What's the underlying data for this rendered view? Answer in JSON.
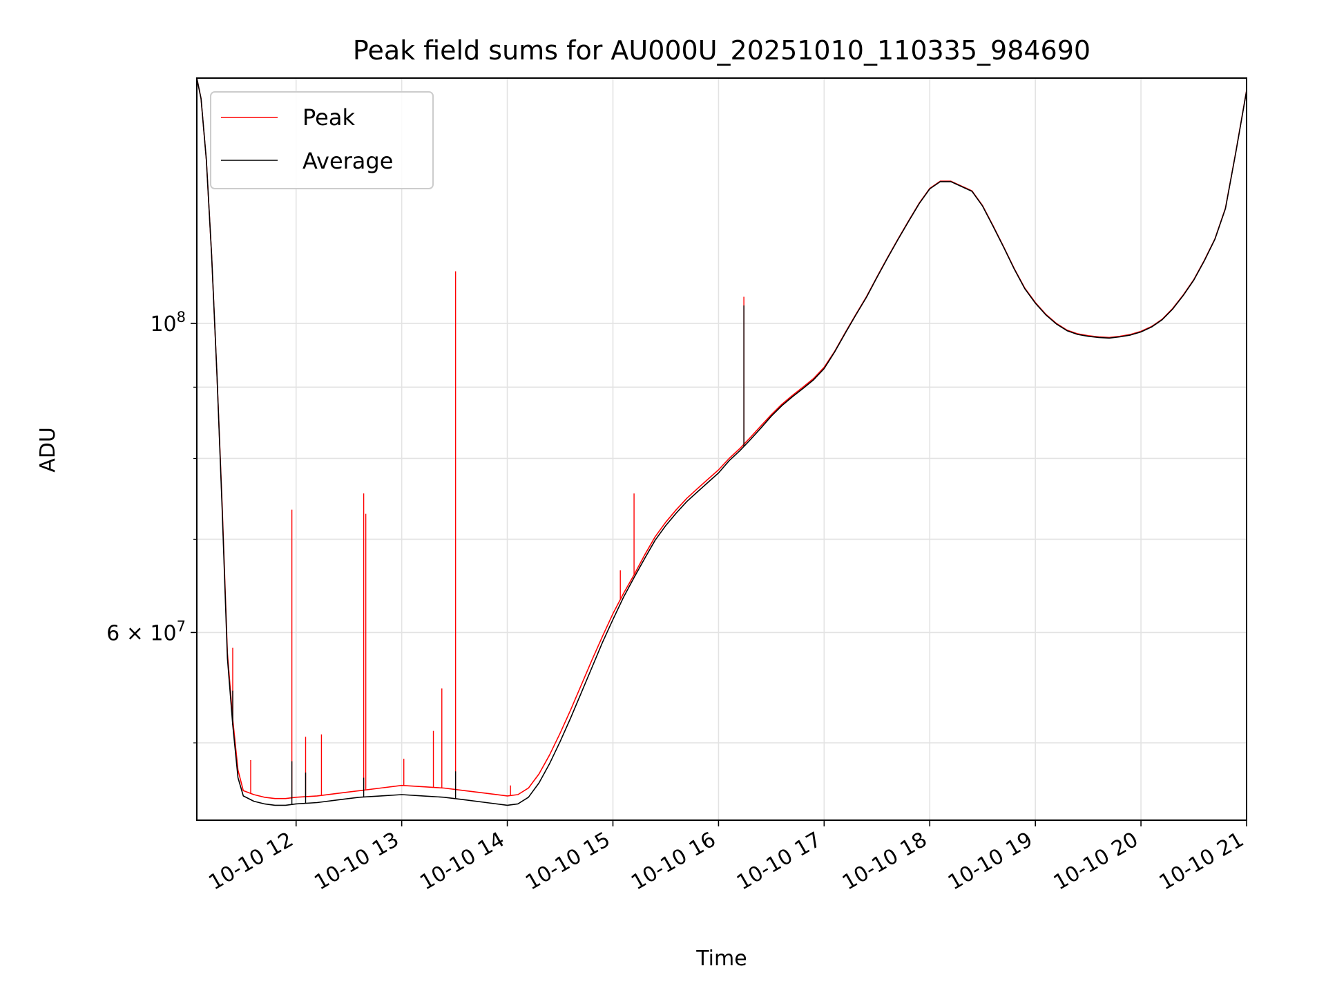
{
  "chart_data": {
    "type": "line",
    "title": "Peak field sums for AU000U_20251010_110335_984690",
    "xlabel": "Time",
    "ylabel": "ADU",
    "yscale": "log",
    "ylim": [
      44000000,
      150000000
    ],
    "xlim_hours": [
      11.06,
      21.0
    ],
    "grid": true,
    "legend_position": "top-left",
    "x_ticks": [
      {
        "value": 12,
        "label": "10-10 12"
      },
      {
        "value": 13,
        "label": "10-10 13"
      },
      {
        "value": 14,
        "label": "10-10 14"
      },
      {
        "value": 15,
        "label": "10-10 15"
      },
      {
        "value": 16,
        "label": "10-10 16"
      },
      {
        "value": 17,
        "label": "10-10 17"
      },
      {
        "value": 18,
        "label": "10-10 18"
      },
      {
        "value": 19,
        "label": "10-10 19"
      },
      {
        "value": 20,
        "label": "10-10 20"
      },
      {
        "value": 21,
        "label": "10-10 21"
      }
    ],
    "y_major_ticks": [
      {
        "value": 100000000,
        "label": "10",
        "sup": "8"
      },
      {
        "value": 60000000,
        "label": "6 × 10",
        "sup": "7"
      }
    ],
    "y_minor_ticks": [
      50000000,
      70000000,
      80000000,
      90000000
    ],
    "series": [
      {
        "name": "Peak",
        "color": "#ff0000",
        "x_hours": [
          11.06,
          11.1,
          11.15,
          11.2,
          11.25,
          11.3,
          11.35,
          11.4,
          11.45,
          11.5,
          11.6,
          11.7,
          11.8,
          11.9,
          12.0,
          12.2,
          12.4,
          12.6,
          12.8,
          13.0,
          13.2,
          13.4,
          13.6,
          13.8,
          14.0,
          14.1,
          14.2,
          14.3,
          14.4,
          14.5,
          14.6,
          14.7,
          14.8,
          14.9,
          15.0,
          15.1,
          15.2,
          15.3,
          15.4,
          15.5,
          15.6,
          15.7,
          15.8,
          15.9,
          16.0,
          16.1,
          16.2,
          16.3,
          16.4,
          16.5,
          16.6,
          16.7,
          16.8,
          16.9,
          17.0,
          17.1,
          17.2,
          17.3,
          17.4,
          17.5,
          17.6,
          17.7,
          17.8,
          17.9,
          18.0,
          18.1,
          18.2,
          18.3,
          18.4,
          18.5,
          18.6,
          18.7,
          18.8,
          18.9,
          19.0,
          19.1,
          19.2,
          19.3,
          19.4,
          19.5,
          19.6,
          19.7,
          19.8,
          19.9,
          20.0,
          20.1,
          20.2,
          20.3,
          20.4,
          20.5,
          20.6,
          20.7,
          20.8,
          20.9,
          21.0
        ],
        "values": [
          150000000,
          145000000,
          131000000,
          112000000,
          92000000,
          74000000,
          58000000,
          52000000,
          47800000,
          46200000,
          45900000,
          45700000,
          45600000,
          45600000,
          45700000,
          45800000,
          46000000,
          46200000,
          46400000,
          46600000,
          46500000,
          46400000,
          46200000,
          46000000,
          45800000,
          45900000,
          46400000,
          47500000,
          49000000,
          50800000,
          52800000,
          55000000,
          57300000,
          59600000,
          61900000,
          64000000,
          66000000,
          68200000,
          70300000,
          72000000,
          73500000,
          74900000,
          76100000,
          77300000,
          78500000,
          80000000,
          81300000,
          82800000,
          84400000,
          86000000,
          87500000,
          88800000,
          90000000,
          91300000,
          93000000,
          95500000,
          98500000,
          101500000,
          104500000,
          108000000,
          111500000,
          115000000,
          118500000,
          122000000,
          125000000,
          126500000,
          126500000,
          125500000,
          124500000,
          121500000,
          117500000,
          113500000,
          109500000,
          106000000,
          103500000,
          101500000,
          100000000,
          98900000,
          98300000,
          98000000,
          97800000,
          97700000,
          97900000,
          98200000,
          98700000,
          99500000,
          100700000,
          102500000,
          104800000,
          107500000,
          111000000,
          115000000,
          121000000,
          133000000,
          147000000
        ],
        "spikes": [
          {
            "x": 11.4,
            "value": 58500000
          },
          {
            "x": 11.57,
            "value": 48600000
          },
          {
            "x": 11.96,
            "value": 73500000
          },
          {
            "x": 12.09,
            "value": 50500000
          },
          {
            "x": 12.24,
            "value": 50700000
          },
          {
            "x": 12.64,
            "value": 75500000
          },
          {
            "x": 12.66,
            "value": 73000000
          },
          {
            "x": 13.02,
            "value": 48700000
          },
          {
            "x": 13.3,
            "value": 51000000
          },
          {
            "x": 13.38,
            "value": 54700000
          },
          {
            "x": 13.51,
            "value": 109000000
          },
          {
            "x": 14.03,
            "value": 46600000
          },
          {
            "x": 15.07,
            "value": 66500000
          },
          {
            "x": 15.2,
            "value": 75500000
          },
          {
            "x": 16.24,
            "value": 104500000
          }
        ]
      },
      {
        "name": "Average",
        "color": "#000000",
        "x_hours": [
          11.06,
          11.1,
          11.15,
          11.2,
          11.25,
          11.3,
          11.35,
          11.4,
          11.45,
          11.5,
          11.6,
          11.7,
          11.8,
          11.9,
          12.0,
          12.2,
          12.4,
          12.6,
          12.8,
          13.0,
          13.2,
          13.4,
          13.6,
          13.8,
          14.0,
          14.1,
          14.2,
          14.3,
          14.4,
          14.5,
          14.6,
          14.7,
          14.8,
          14.9,
          15.0,
          15.1,
          15.2,
          15.3,
          15.4,
          15.5,
          15.6,
          15.7,
          15.8,
          15.9,
          16.0,
          16.1,
          16.2,
          16.3,
          16.4,
          16.5,
          16.6,
          16.7,
          16.8,
          16.9,
          17.0,
          17.1,
          17.2,
          17.3,
          17.4,
          17.5,
          17.6,
          17.7,
          17.8,
          17.9,
          18.0,
          18.1,
          18.2,
          18.3,
          18.4,
          18.5,
          18.6,
          18.7,
          18.8,
          18.9,
          19.0,
          19.1,
          19.2,
          19.3,
          19.4,
          19.5,
          19.6,
          19.7,
          19.8,
          19.9,
          20.0,
          20.1,
          20.2,
          20.3,
          20.4,
          20.5,
          20.6,
          20.7,
          20.8,
          20.9,
          21.0
        ],
        "values": [
          150000000,
          145000000,
          131000000,
          112000000,
          92000000,
          73500000,
          57500000,
          51500000,
          47200000,
          45800000,
          45400000,
          45200000,
          45100000,
          45100000,
          45200000,
          45300000,
          45500000,
          45700000,
          45800000,
          45900000,
          45800000,
          45700000,
          45500000,
          45300000,
          45100000,
          45200000,
          45700000,
          46800000,
          48300000,
          50100000,
          52100000,
          54300000,
          56600000,
          59000000,
          61300000,
          63600000,
          65700000,
          67800000,
          69900000,
          71600000,
          73100000,
          74500000,
          75700000,
          76900000,
          78100000,
          79700000,
          81000000,
          82500000,
          84100000,
          85800000,
          87300000,
          88600000,
          89800000,
          91100000,
          92800000,
          95400000,
          98400000,
          101400000,
          104400000,
          107900000,
          111400000,
          114900000,
          118400000,
          121900000,
          124900000,
          126400000,
          126400000,
          125400000,
          124400000,
          121400000,
          117400000,
          113400000,
          109400000,
          105900000,
          103400000,
          101400000,
          99900000,
          98800000,
          98200000,
          97900000,
          97700000,
          97600000,
          97800000,
          98100000,
          98600000,
          99400000,
          100600000,
          102400000,
          104700000,
          107400000,
          110900000,
          114900000,
          120900000,
          132900000,
          146900000
        ],
        "spikes": [
          {
            "x": 11.4,
            "value": 54500000
          },
          {
            "x": 11.96,
            "value": 48500000
          },
          {
            "x": 12.09,
            "value": 47600000
          },
          {
            "x": 12.64,
            "value": 47200000
          },
          {
            "x": 13.51,
            "value": 47700000
          },
          {
            "x": 16.24,
            "value": 103000000
          }
        ]
      }
    ]
  }
}
